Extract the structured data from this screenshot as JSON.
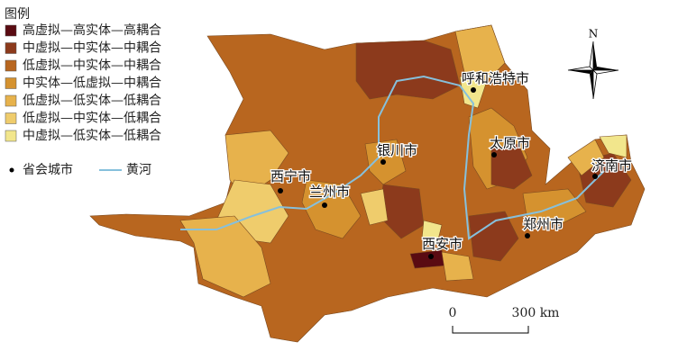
{
  "legend": {
    "title": "图例",
    "items": [
      {
        "label": "高虚拟—高实体—高耦合",
        "color": "#5a0b12"
      },
      {
        "label": "中虚拟—中实体—中耦合",
        "color": "#8c3a1c"
      },
      {
        "label": "低虚拟—中实体—中耦合",
        "color": "#b8661f"
      },
      {
        "label": "中实体—低虚拟—中耦合",
        "color": "#d5922f"
      },
      {
        "label": "低虚拟—低实体—低耦合",
        "color": "#e7b24c"
      },
      {
        "label": "低虚拟—中实体—低耦合",
        "color": "#efcc6c"
      },
      {
        "label": "中虚拟—低实体—低耦合",
        "color": "#f2e68c"
      }
    ],
    "capital_label": "省会城市",
    "river_label": "黄河"
  },
  "cities": [
    "呼和浩特市",
    "银川市",
    "太原市",
    "西宁市",
    "兰州市",
    "济南市",
    "郑州市",
    "西安市"
  ],
  "compass": "N",
  "scale": {
    "start": "0",
    "end": "300 km"
  }
}
